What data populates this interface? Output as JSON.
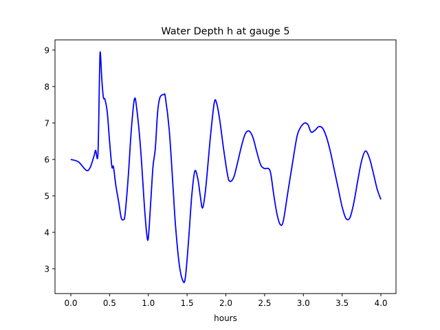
{
  "chart_data": {
    "type": "line",
    "title": "Water Depth h at gauge 5",
    "xlabel": "hours",
    "ylabel": "",
    "xlim": [
      -0.204,
      4.195
    ],
    "ylim": [
      2.32,
      9.28
    ],
    "xticks": [
      0.0,
      0.5,
      1.0,
      1.5,
      2.0,
      2.5,
      3.0,
      3.5,
      4.0
    ],
    "xtick_labels": [
      "0.0",
      "0.5",
      "1.0",
      "1.5",
      "2.0",
      "2.5",
      "3.0",
      "3.5",
      "4.0"
    ],
    "yticks": [
      3,
      4,
      5,
      6,
      7,
      8,
      9
    ],
    "ytick_labels": [
      "3",
      "4",
      "5",
      "6",
      "7",
      "8",
      "9"
    ],
    "grid": false,
    "series": [
      {
        "name": "h",
        "color": "#0000ff",
        "x": [
          0.0,
          0.1,
          0.2,
          0.25,
          0.3,
          0.32,
          0.35,
          0.37,
          0.38,
          0.4,
          0.42,
          0.44,
          0.47,
          0.5,
          0.53,
          0.55,
          0.58,
          0.62,
          0.65,
          0.68,
          0.7,
          0.74,
          0.78,
          0.82,
          0.85,
          0.9,
          0.95,
          0.98,
          1.0,
          1.03,
          1.06,
          1.09,
          1.12,
          1.15,
          1.2,
          1.22,
          1.27,
          1.32,
          1.35,
          1.4,
          1.45,
          1.48,
          1.52,
          1.56,
          1.6,
          1.64,
          1.67,
          1.7,
          1.74,
          1.8,
          1.85,
          1.88,
          1.92,
          1.97,
          2.02,
          2.05,
          2.1,
          2.15,
          2.2,
          2.25,
          2.3,
          2.35,
          2.4,
          2.45,
          2.5,
          2.55,
          2.58,
          2.62,
          2.66,
          2.7,
          2.74,
          2.8,
          2.86,
          2.92,
          2.97,
          3.02,
          3.06,
          3.1,
          3.15,
          3.2,
          3.25,
          3.3,
          3.35,
          3.4,
          3.45,
          3.5,
          3.55,
          3.6,
          3.65,
          3.7,
          3.75,
          3.8,
          3.85,
          3.9,
          3.95,
          4.0
        ],
        "y": [
          6.0,
          5.93,
          5.7,
          5.78,
          6.1,
          6.25,
          6.15,
          8.3,
          8.95,
          8.2,
          7.7,
          7.65,
          7.3,
          6.5,
          5.8,
          5.8,
          5.3,
          4.8,
          4.4,
          4.35,
          4.5,
          5.5,
          6.8,
          7.65,
          7.4,
          6.3,
          4.7,
          3.95,
          3.85,
          4.8,
          5.8,
          6.3,
          7.3,
          7.7,
          7.78,
          7.7,
          6.8,
          5.2,
          4.2,
          3.1,
          2.65,
          2.8,
          3.8,
          5.0,
          5.68,
          5.45,
          5.0,
          4.67,
          5.2,
          6.6,
          7.55,
          7.55,
          7.1,
          6.3,
          5.6,
          5.4,
          5.5,
          5.9,
          6.35,
          6.7,
          6.78,
          6.6,
          6.2,
          5.85,
          5.75,
          5.75,
          5.6,
          5.0,
          4.5,
          4.22,
          4.3,
          5.1,
          5.9,
          6.65,
          6.9,
          7.0,
          6.95,
          6.75,
          6.8,
          6.9,
          6.85,
          6.6,
          6.2,
          5.7,
          5.2,
          4.7,
          4.38,
          4.4,
          4.8,
          5.4,
          5.95,
          6.23,
          6.05,
          5.65,
          5.2,
          4.9
        ]
      }
    ]
  }
}
